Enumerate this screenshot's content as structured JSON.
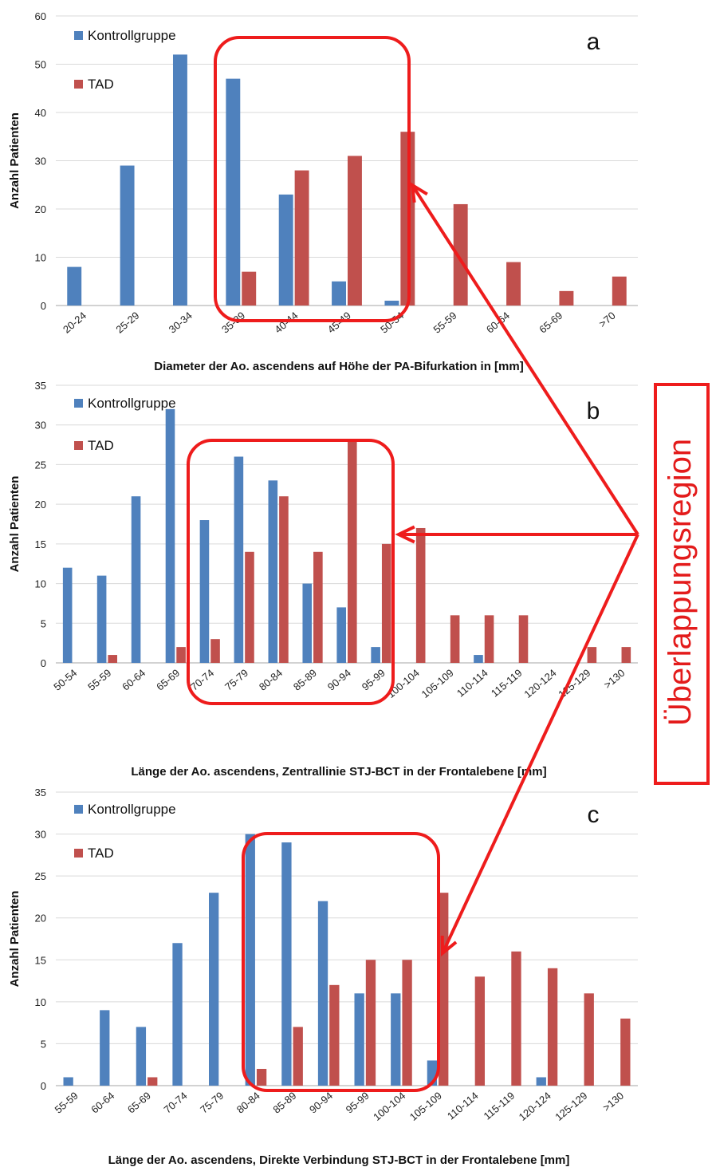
{
  "colors": {
    "kontroll": "#4f81bd",
    "tad": "#c0504d",
    "grid": "#d9d9d9",
    "highlight": "#ee1c1c"
  },
  "overlap_label": "Überlappungsregion",
  "chart_data": [
    {
      "type": "bar",
      "panel_letter": "a",
      "title": "",
      "xlabel": "Diameter der Ao. ascendens auf Höhe der PA-Bifurkation in [mm]",
      "ylabel": "Anzahl Patienten",
      "ylim": [
        0,
        60
      ],
      "yticks": [
        0,
        10,
        20,
        30,
        40,
        50,
        60
      ],
      "grid": true,
      "legend_position": "top-left",
      "categories": [
        "20-24",
        "25-29",
        "30-34",
        "35-39",
        "40-44",
        "45-49",
        "50-54",
        "55-59",
        "60-64",
        "65-69",
        ">70"
      ],
      "series": [
        {
          "name": "Kontrollgruppe",
          "values": [
            8,
            29,
            52,
            47,
            23,
            5,
            1,
            0,
            0,
            0,
            0
          ]
        },
        {
          "name": "TAD",
          "values": [
            0,
            0,
            0,
            7,
            28,
            31,
            36,
            21,
            9,
            3,
            6
          ]
        }
      ]
    },
    {
      "type": "bar",
      "panel_letter": "b",
      "title": "",
      "xlabel": "Länge der Ao. ascendens, Zentrallinie STJ-BCT in der Frontalebene [mm]",
      "ylabel": "Anzahl Patienten",
      "ylim": [
        0,
        35
      ],
      "yticks": [
        0,
        5,
        10,
        15,
        20,
        25,
        30,
        35
      ],
      "grid": true,
      "legend_position": "top-left",
      "categories": [
        "50-54",
        "55-59",
        "60-64",
        "65-69",
        "70-74",
        "75-79",
        "80-84",
        "85-89",
        "90-94",
        "95-99",
        "100-104",
        "105-109",
        "110-114",
        "115-119",
        "120-124",
        "125-129",
        ">130"
      ],
      "series": [
        {
          "name": "Kontrollgruppe",
          "values": [
            12,
            11,
            21,
            32,
            18,
            26,
            23,
            10,
            7,
            2,
            0,
            0,
            1,
            0,
            0,
            0,
            0
          ]
        },
        {
          "name": "TAD",
          "values": [
            0,
            1,
            0,
            2,
            3,
            14,
            21,
            14,
            28,
            15,
            17,
            6,
            6,
            6,
            0,
            2,
            2
          ]
        }
      ]
    },
    {
      "type": "bar",
      "panel_letter": "c",
      "title": "",
      "xlabel": "Länge der Ao. ascendens, Direkte Verbindung STJ-BCT in der Frontalebene [mm]",
      "ylabel": "Anzahl Patienten",
      "ylim": [
        0,
        35
      ],
      "yticks": [
        0,
        5,
        10,
        15,
        20,
        25,
        30,
        35
      ],
      "grid": true,
      "legend_position": "top-left",
      "categories": [
        "55-59",
        "60-64",
        "65-69",
        "70-74",
        "75-79",
        "80-84",
        "85-89",
        "90-94",
        "95-99",
        "100-104",
        "105-109",
        "110-114",
        "115-119",
        "120-124",
        "125-129",
        ">130"
      ],
      "series": [
        {
          "name": "Kontrollgruppe",
          "values": [
            1,
            9,
            7,
            17,
            23,
            30,
            29,
            22,
            11,
            11,
            3,
            0,
            0,
            1,
            0,
            0
          ]
        },
        {
          "name": "TAD",
          "values": [
            0,
            0,
            1,
            0,
            0,
            2,
            7,
            12,
            15,
            15,
            23,
            13,
            16,
            14,
            11,
            8
          ]
        }
      ]
    }
  ]
}
